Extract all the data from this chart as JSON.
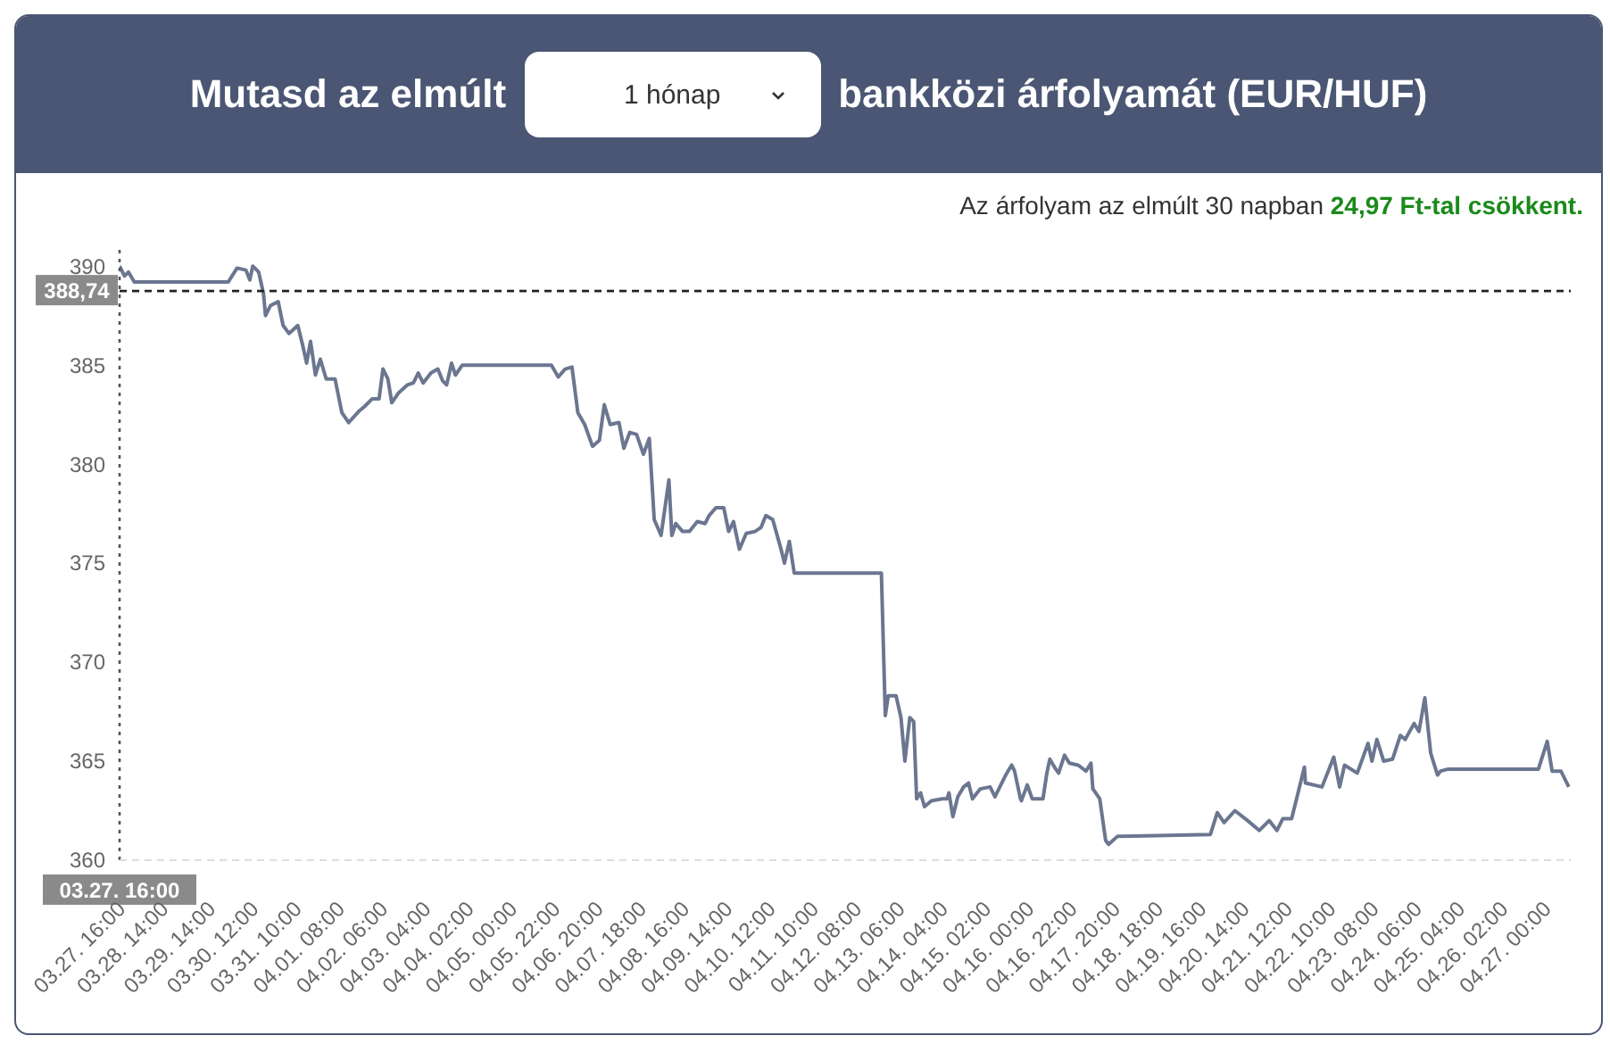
{
  "chart_data": {
    "type": "line",
    "title": "Mutasd az elmúlt",
    "annotations": [
      "1 hónap",
      "bankközi árfolyamát (EUR/HUF)",
      "Az árfolyam az elmúlt 30 napban ",
      "24,97 Ft-tal csökkent."
    ],
    "xlim": [
      "--03-27T16:00",
      "--04-27T13:00"
    ],
    "ylim": [
      360,
      391
    ],
    "yticks": [
      360,
      365,
      370,
      375,
      380,
      385,
      390
    ],
    "xticks": [
      {
        "value": "--03-27T16:00",
        "label": "03.27. 16:00"
      },
      {
        "value": "--03-28T14:00",
        "label": "03.28. 14:00"
      },
      {
        "value": "--03-29T14:00",
        "label": "03.29. 14:00"
      },
      {
        "value": "--03-30T12:00",
        "label": "03.30. 12:00"
      },
      {
        "value": "--03-31T10:00",
        "label": "03.31. 10:00"
      },
      {
        "value": "--04-01T08:00",
        "label": "04.01. 08:00"
      },
      {
        "value": "--04-02T06:00",
        "label": "04.02. 06:00"
      },
      {
        "value": "--04-03T04:00",
        "label": "04.03. 04:00"
      },
      {
        "value": "--04-04T02:00",
        "label": "04.04. 02:00"
      },
      {
        "value": "--04-05T00:00",
        "label": "04.05. 00:00"
      },
      {
        "value": "--04-05T22:00",
        "label": "04.05. 22:00"
      },
      {
        "value": "--04-06T20:00",
        "label": "04.06. 20:00"
      },
      {
        "value": "--04-07T18:00",
        "label": "04.07. 18:00"
      },
      {
        "value": "--04-08T16:00",
        "label": "04.08. 16:00"
      },
      {
        "value": "--04-09T14:00",
        "label": "04.09. 14:00"
      },
      {
        "value": "--04-10T12:00",
        "label": "04.10. 12:00"
      },
      {
        "value": "--04-11T10:00",
        "label": "04.11. 10:00"
      },
      {
        "value": "--04-12T08:00",
        "label": "04.12. 08:00"
      },
      {
        "value": "--04-13T06:00",
        "label": "04.13. 06:00"
      },
      {
        "value": "--04-14T04:00",
        "label": "04.14. 04:00"
      },
      {
        "value": "--04-15T02:00",
        "label": "04.15. 02:00"
      },
      {
        "value": "--04-16T00:00",
        "label": "04.16. 00:00"
      },
      {
        "value": "--04-16T22:00",
        "label": "04.16. 22:00"
      },
      {
        "value": "--04-17T20:00",
        "label": "04.17. 20:00"
      },
      {
        "value": "--04-18T18:00",
        "label": "04.18. 18:00"
      },
      {
        "value": "--04-19T16:00",
        "label": "04.19. 16:00"
      },
      {
        "value": "--04-20T14:00",
        "label": "04.20. 14:00"
      },
      {
        "value": "--04-21T12:00",
        "label": "04.21. 12:00"
      },
      {
        "value": "--04-22T10:00",
        "label": "04.22. 10:00"
      },
      {
        "value": "--04-23T08:00",
        "label": "04.23. 08:00"
      },
      {
        "value": "--04-24T06:00",
        "label": "04.24. 06:00"
      },
      {
        "value": "--04-25T04:00",
        "label": "04.25. 04:00"
      },
      {
        "value": "--04-26T02:00",
        "label": "04.26. 02:00"
      },
      {
        "value": "--04-27T00:00",
        "label": "04.27. 00:00"
      }
    ],
    "grid": false,
    "marker": "none",
    "line_style": "solid",
    "ref_lines": [
      {
        "axis": "y",
        "value": 388.74,
        "label": "388,74",
        "color": "#222222",
        "line_style": "dashed"
      },
      {
        "axis": "x",
        "value": "--03-27T16:00",
        "label": "03.27. 16:00",
        "color": "#555555",
        "line_style": "dotted"
      }
    ],
    "series": [
      {
        "color": "#6b7690",
        "x": [
          "--03-27T16:00",
          "--03-27T18:30",
          "--03-27T20:30",
          "--03-27T23:30",
          "--03-29T23:30",
          "--03-30T04:00",
          "--03-30T08:30",
          "--03-30T10:30",
          "--03-30T12:00",
          "--03-30T15:00",
          "--03-30T17:30",
          "--03-30T18:30",
          "--03-30T21:00",
          "--03-31T01:00",
          "--03-31T03:30",
          "--03-31T06:30",
          "--03-31T11:00",
          "--03-31T13:30",
          "--03-31T15:30",
          "--03-31T17:30",
          "--03-31T20:00",
          "--03-31T22:30",
          "--04-01T01:30",
          "--04-01T06:00",
          "--04-01T09:30",
          "--04-01T13:00",
          "--04-01T18:30",
          "--04-01T21:00",
          "--04-02T01:00",
          "--04-02T04:30",
          "--04-02T06:30",
          "--04-02T09:00",
          "--04-02T11:00",
          "--04-02T14:30",
          "--04-02T19:00",
          "--04-02T22:00",
          "--04-03T00:30",
          "--04-03T03:00",
          "--04-03T07:00",
          "--04-03T10:30",
          "--04-03T13:00",
          "--04-03T15:00",
          "--04-03T17:30",
          "--04-03T19:30",
          "--04-03T23:00",
          "--04-05T20:30",
          "--04-06T00:00",
          "--04-06T03:30",
          "--04-06T07:00",
          "--04-06T10:00",
          "--04-06T13:30",
          "--04-06T17:30",
          "--04-06T21:00",
          "--04-06T23:30",
          "--04-07T02:30",
          "--04-07T07:00",
          "--04-07T09:30",
          "--04-07T12:30",
          "--04-07T16:00",
          "--04-07T19:30",
          "--04-07T22:30",
          "--04-08T01:00",
          "--04-08T04:30",
          "--04-08T08:30",
          "--04-08T10:00",
          "--04-08T12:00",
          "--04-08T15:30",
          "--04-08T19:00",
          "--04-08T23:00",
          "--04-09T03:00",
          "--04-09T05:00",
          "--04-09T08:30",
          "--04-09T12:30",
          "--04-09T15:00",
          "--04-09T17:30",
          "--04-09T20:30",
          "--04-10T00:00",
          "--04-10T04:30",
          "--04-10T07:30",
          "--04-10T10:00",
          "--04-10T13:30",
          "--04-10T17:30",
          "--04-10T19:30",
          "--04-10T22:00",
          "--04-11T00:30",
          "--04-12T21:00",
          "--04-12T23:00",
          "--04-13T00:30",
          "--04-13T04:30",
          "--04-13T07:00",
          "--04-13T09:00",
          "--04-13T11:30",
          "--04-13T13:30",
          "--04-13T15:00",
          "--04-13T17:00",
          "--04-13T19:00",
          "--04-13T22:30",
          "--04-14T04:00",
          "--04-14T06:30",
          "--04-14T07:30",
          "--04-14T09:30",
          "--04-14T12:00",
          "--04-14T15:00",
          "--04-14T17:30",
          "--04-14T19:30",
          "--04-14T23:30",
          "--04-15T04:30",
          "--04-15T07:00",
          "--04-15T10:00",
          "--04-15T12:30",
          "--04-15T15:30",
          "--04-15T17:00",
          "--04-15T20:00",
          "--04-15T20:30",
          "--04-15T23:30",
          "--04-16T02:00",
          "--04-16T07:30",
          "--04-16T09:30",
          "--04-16T11:00",
          "--04-16T14:00",
          "--04-16T15:30",
          "--04-16T18:30",
          "--04-16T21:00",
          "--04-17T01:30",
          "--04-17T05:30",
          "--04-17T08:00",
          "--04-17T09:00",
          "--04-17T12:30",
          "--04-17T15:30",
          "--04-17T17:00",
          "--04-17T21:30",
          "--04-19T21:00",
          "--04-20T00:30",
          "--04-20T04:00",
          "--04-20T09:30",
          "--04-20T16:00",
          "--04-20T22:00",
          "--04-21T03:00",
          "--04-21T07:00",
          "--04-21T10:00",
          "--04-21T14:30",
          "--04-21T21:00",
          "--04-21T21:30",
          "--04-22T06:00",
          "--04-22T12:00",
          "--04-22T15:00",
          "--04-22T17:30",
          "--04-23T00:00",
          "--04-23T05:30",
          "--04-23T07:30",
          "--04-23T10:00",
          "--04-23T13:30",
          "--04-23T18:00",
          "--04-23T22:00",
          "--04-24T00:30",
          "--04-24T05:00",
          "--04-24T07:30",
          "--04-24T10:30",
          "--04-24T13:30",
          "--04-24T17:00",
          "--04-24T18:30",
          "--04-24T22:30",
          "--04-26T20:30",
          "--04-27T01:00",
          "--04-27T03:30",
          "--04-27T08:00",
          "--04-27T12:00"
        ],
        "values": [
          390.0,
          389.5,
          389.7,
          389.2,
          389.2,
          389.9,
          389.8,
          389.3,
          390.0,
          389.7,
          388.6,
          387.5,
          388.0,
          388.2,
          387.0,
          386.6,
          387.0,
          386.0,
          385.1,
          386.2,
          384.5,
          385.3,
          384.3,
          384.3,
          382.6,
          382.1,
          382.7,
          382.9,
          383.3,
          383.3,
          384.8,
          384.3,
          383.1,
          383.6,
          384.0,
          384.1,
          384.6,
          384.1,
          384.6,
          384.8,
          384.2,
          384.0,
          385.1,
          384.5,
          385.0,
          385.0,
          384.4,
          384.8,
          384.9,
          382.6,
          382.0,
          380.9,
          381.2,
          383.0,
          382.0,
          382.1,
          380.8,
          381.6,
          381.5,
          380.5,
          381.3,
          377.2,
          376.4,
          379.2,
          376.4,
          377.0,
          376.6,
          376.6,
          377.1,
          377.0,
          377.4,
          377.8,
          377.8,
          376.6,
          377.1,
          375.7,
          376.5,
          376.6,
          376.8,
          377.4,
          377.2,
          375.8,
          375.0,
          376.1,
          374.5,
          374.5,
          367.3,
          368.3,
          368.3,
          367.2,
          365.0,
          367.2,
          367.0,
          363.1,
          363.4,
          362.7,
          363.0,
          363.1,
          363.1,
          363.4,
          362.2,
          363.2,
          363.7,
          363.9,
          363.1,
          363.6,
          363.7,
          363.2,
          363.8,
          364.3,
          364.8,
          364.5,
          363.1,
          363.0,
          363.8,
          363.1,
          363.1,
          364.4,
          365.1,
          364.6,
          364.4,
          365.3,
          364.9,
          364.8,
          364.5,
          364.9,
          363.6,
          363.1,
          361.0,
          360.8,
          361.2,
          361.3,
          362.4,
          361.9,
          362.5,
          362.0,
          361.5,
          362.0,
          361.5,
          362.1,
          362.1,
          364.7,
          363.9,
          363.7,
          365.2,
          363.7,
          364.8,
          364.4,
          365.9,
          365.0,
          366.1,
          365.0,
          365.1,
          366.3,
          366.1,
          366.9,
          366.5,
          368.2,
          365.4,
          364.3,
          364.5,
          364.6,
          364.6,
          366.0,
          364.5,
          364.5,
          363.7
        ]
      }
    ]
  }
}
